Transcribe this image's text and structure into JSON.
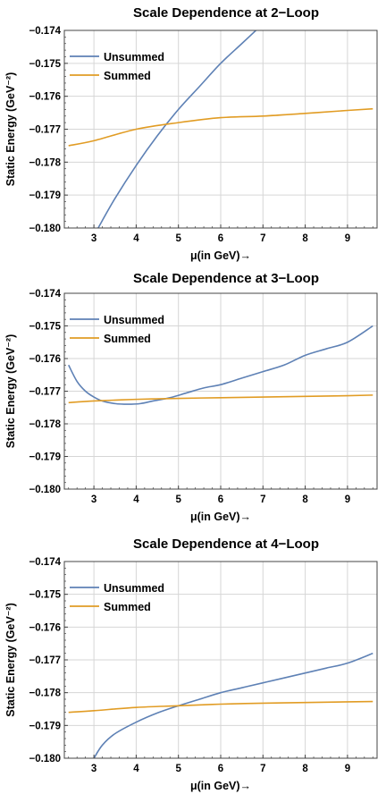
{
  "chart_data": [
    {
      "type": "line",
      "title": "Scale Dependence at 2−Loop",
      "xlabel": "μ(in GeV)→",
      "ylabel": "Static Energy (GeV⁻²)",
      "xlim": [
        2.3,
        9.7
      ],
      "ylim": [
        -0.18,
        -0.174
      ],
      "xticks": [
        3,
        4,
        5,
        6,
        7,
        8,
        9
      ],
      "xtick_labels": [
        "3",
        "4",
        "5",
        "6",
        "7",
        "8",
        "9"
      ],
      "yticks": [
        -0.18,
        -0.179,
        -0.178,
        -0.177,
        -0.176,
        -0.175,
        -0.174
      ],
      "ytick_labels": [
        "−0.180",
        "−0.179",
        "−0.178",
        "−0.177",
        "−0.176",
        "−0.175",
        "−0.174"
      ],
      "grid": true,
      "legend_position": "top-left",
      "series": [
        {
          "name": "Unsummed",
          "color": "#5e81b5",
          "x": [
            3.1,
            3.5,
            4.0,
            4.5,
            5.0,
            5.5,
            6.0,
            6.5,
            7.0
          ],
          "y": [
            -0.18,
            -0.1791,
            -0.1781,
            -0.1772,
            -0.1764,
            -0.1757,
            -0.175,
            -0.1744,
            -0.1738
          ]
        },
        {
          "name": "Summed",
          "color": "#e19c24",
          "x": [
            2.4,
            3.0,
            4.0,
            5.0,
            6.0,
            7.0,
            8.0,
            9.0,
            9.6
          ],
          "y": [
            -0.1775,
            -0.17735,
            -0.177,
            -0.1768,
            -0.17665,
            -0.1766,
            -0.17652,
            -0.17643,
            -0.17638
          ]
        }
      ]
    },
    {
      "type": "line",
      "title": "Scale Dependence at 3−Loop",
      "xlabel": "μ(in GeV)→",
      "ylabel": "Static Energy (GeV⁻²)",
      "xlim": [
        2.3,
        9.7
      ],
      "ylim": [
        -0.18,
        -0.174
      ],
      "xticks": [
        3,
        4,
        5,
        6,
        7,
        8,
        9
      ],
      "xtick_labels": [
        "3",
        "4",
        "5",
        "6",
        "7",
        "8",
        "9"
      ],
      "yticks": [
        -0.18,
        -0.179,
        -0.178,
        -0.177,
        -0.176,
        -0.175,
        -0.174
      ],
      "ytick_labels": [
        "−0.180",
        "−0.179",
        "−0.178",
        "−0.177",
        "−0.176",
        "−0.175",
        "−0.174"
      ],
      "grid": true,
      "legend_position": "top-left",
      "series": [
        {
          "name": "Unsummed",
          "color": "#5e81b5",
          "x": [
            2.4,
            2.6,
            2.8,
            3.0,
            3.2,
            3.5,
            3.8,
            4.1,
            4.4,
            4.8,
            5.2,
            5.6,
            6.0,
            6.5,
            7.0,
            7.5,
            8.0,
            8.5,
            9.0,
            9.6
          ],
          "y": [
            -0.1762,
            -0.1767,
            -0.177,
            -0.17718,
            -0.1773,
            -0.17738,
            -0.1774,
            -0.17738,
            -0.1773,
            -0.1772,
            -0.17705,
            -0.1769,
            -0.1768,
            -0.1766,
            -0.1764,
            -0.1762,
            -0.1759,
            -0.1757,
            -0.1755,
            -0.175
          ]
        },
        {
          "name": "Summed",
          "color": "#e19c24",
          "x": [
            2.4,
            3.0,
            4.0,
            5.0,
            6.0,
            7.0,
            8.0,
            9.0,
            9.6
          ],
          "y": [
            -0.17735,
            -0.1773,
            -0.17725,
            -0.17722,
            -0.1772,
            -0.17718,
            -0.17716,
            -0.17714,
            -0.17712
          ]
        }
      ]
    },
    {
      "type": "line",
      "title": "Scale Dependence at 4−Loop",
      "xlabel": "μ(in GeV)→",
      "ylabel": "Static Energy (GeV⁻²)",
      "xlim": [
        2.3,
        9.7
      ],
      "ylim": [
        -0.18,
        -0.174
      ],
      "xticks": [
        3,
        4,
        5,
        6,
        7,
        8,
        9
      ],
      "xtick_labels": [
        "3",
        "4",
        "5",
        "6",
        "7",
        "8",
        "9"
      ],
      "yticks": [
        -0.18,
        -0.179,
        -0.178,
        -0.177,
        -0.176,
        -0.175,
        -0.174
      ],
      "ytick_labels": [
        "−0.180",
        "−0.179",
        "−0.178",
        "−0.177",
        "−0.176",
        "−0.175",
        "−0.174"
      ],
      "grid": true,
      "legend_position": "top-left",
      "series": [
        {
          "name": "Unsummed",
          "color": "#5e81b5",
          "x": [
            3.0,
            3.2,
            3.5,
            4.0,
            4.5,
            5.0,
            5.5,
            6.0,
            6.5,
            7.0,
            7.5,
            8.0,
            8.5,
            9.0,
            9.6
          ],
          "y": [
            -0.18,
            -0.1796,
            -0.17925,
            -0.1789,
            -0.17862,
            -0.1784,
            -0.1782,
            -0.178,
            -0.17785,
            -0.1777,
            -0.17755,
            -0.1774,
            -0.17725,
            -0.1771,
            -0.1768
          ]
        },
        {
          "name": "Summed",
          "color": "#e19c24",
          "x": [
            2.4,
            3.0,
            4.0,
            5.0,
            6.0,
            7.0,
            8.0,
            9.0,
            9.6
          ],
          "y": [
            -0.1786,
            -0.17855,
            -0.17845,
            -0.1784,
            -0.17835,
            -0.17832,
            -0.1783,
            -0.17828,
            -0.17827
          ]
        }
      ]
    }
  ]
}
